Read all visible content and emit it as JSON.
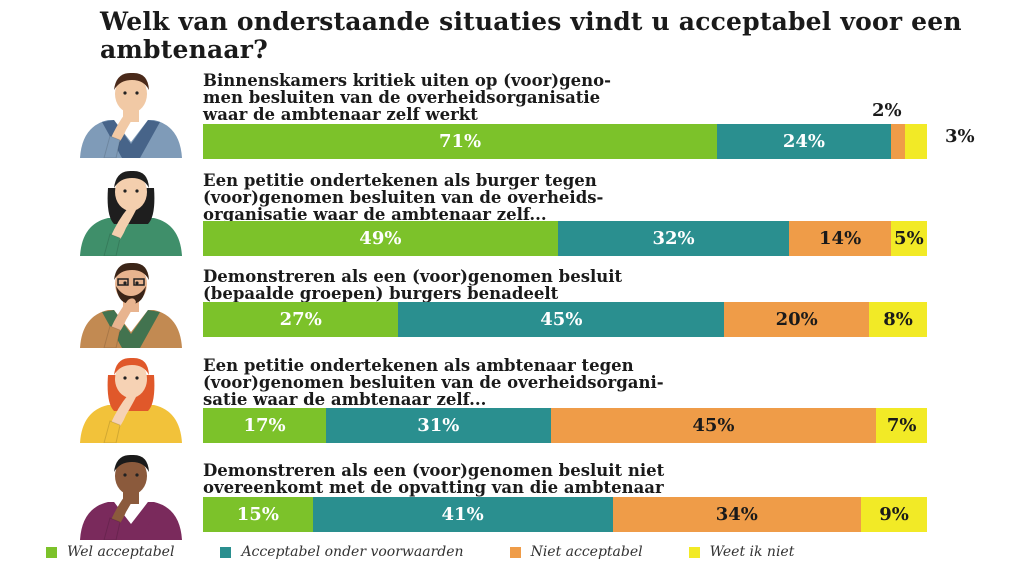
{
  "title": "Welk van onderstaande situaties vindt u acceptabel voor een ambtenaar?",
  "colors": {
    "wel": "#7cc22a",
    "voorwaarden": "#2a8f8f",
    "niet": "#ef9c48",
    "weetniet": "#f2ea26"
  },
  "chart_data": {
    "type": "bar",
    "stacked": true,
    "orientation": "horizontal",
    "title": "Welk van onderstaande situaties vindt u acceptabel voor een ambtenaar?",
    "categories": [
      "Binnenskamers kritiek uiten op (voor)genomen besluiten van de overheidsorganisatie waar de ambtenaar zelf werkt",
      "Een petitie ondertekenen als burger tegen (voor)genomen besluiten van de overheidsorganisatie waar de ambtenaar zelf...",
      "Demonstreren als een (voor)genomen besluit (bepaalde groepen) burgers benadeelt",
      "Een petitie ondertekenen als ambtenaar tegen (voor)genomen besluiten van de overheidsorganisatie waar de ambtenaar zelf...",
      "Demonstreren als een (voor)genomen besluit niet overeenkomt met de opvatting van die ambtenaar"
    ],
    "series": [
      {
        "name": "Wel acceptabel",
        "values": [
          71,
          49,
          27,
          17,
          15
        ]
      },
      {
        "name": "Acceptabel onder voorwaarden",
        "values": [
          24,
          32,
          45,
          31,
          41
        ]
      },
      {
        "name": "Niet acceptabel",
        "values": [
          2,
          14,
          20,
          45,
          34
        ]
      },
      {
        "name": "Weet ik niet",
        "values": [
          3,
          5,
          8,
          7,
          9
        ]
      }
    ],
    "legend": "bottom",
    "questions": [
      {
        "lines": [
          "Binnenskamers kritiek uiten op (voor)geno-",
          "men besluiten van de overheidsorganisatie",
          "waar de ambtenaar zelf werkt"
        ]
      },
      {
        "lines": [
          "Een petitie ondertekenen als burger tegen",
          "(voor)genomen besluiten van de overheids-",
          "organisatie waar de ambtenaar zelf..."
        ]
      },
      {
        "lines": [
          "Demonstreren als een (voor)genomen besluit",
          "(bepaalde groepen) burgers benadeelt"
        ]
      },
      {
        "lines": [
          "Een petitie ondertekenen als ambtenaar tegen",
          "(voor)genomen besluiten van de overheidsorgani-",
          "satie waar de ambtenaar zelf..."
        ]
      },
      {
        "lines": [
          "Demonstreren als een (voor)genomen besluit niet",
          "overeenkomt met de opvatting van die ambtenaar"
        ]
      }
    ],
    "labels": [
      [
        "71%",
        "24%",
        "2%",
        "3%"
      ],
      [
        "49%",
        "32%",
        "14%",
        "5%"
      ],
      [
        "27%",
        "45%",
        "20%",
        "8%"
      ],
      [
        "17%",
        "31%",
        "45%",
        "7%"
      ],
      [
        "15%",
        "41%",
        "34%",
        "9%"
      ]
    ]
  },
  "legend": [
    {
      "label": "Wel acceptabel",
      "color": "#7cc22a"
    },
    {
      "label": "Acceptabel onder voorwaarden",
      "color": "#2a8f8f"
    },
    {
      "label": "Niet acceptabel",
      "color": "#ef9c48"
    },
    {
      "label": "Weet ik niet",
      "color": "#f2ea26"
    }
  ],
  "avatars": [
    {
      "icon": "man-thinking-icon",
      "skin": "#f1c9a5",
      "hair": "#4a2a1a",
      "shirt": "#7f9bb8",
      "vest": "#3d5a80"
    },
    {
      "icon": "woman-thinking-icon",
      "skin": "#f4cfae",
      "hair": "#1e1e1e",
      "shirt": "#3f8f6a",
      "vest": "#3f8f6a"
    },
    {
      "icon": "bearded-man-thinking-icon",
      "skin": "#e8b48f",
      "hair": "#3b2518",
      "shirt": "#c28a52",
      "vest": "#2c6e4f"
    },
    {
      "icon": "redhead-woman-thinking-icon",
      "skin": "#f6d2b4",
      "hair": "#e0582a",
      "shirt": "#f2c23a",
      "vest": "#f2c23a"
    },
    {
      "icon": "dark-skinned-man-thinking-icon",
      "skin": "#8b5a3c",
      "hair": "#1a1a1a",
      "shirt": "#7a2a5c",
      "vest": "#7a2a5c"
    }
  ]
}
